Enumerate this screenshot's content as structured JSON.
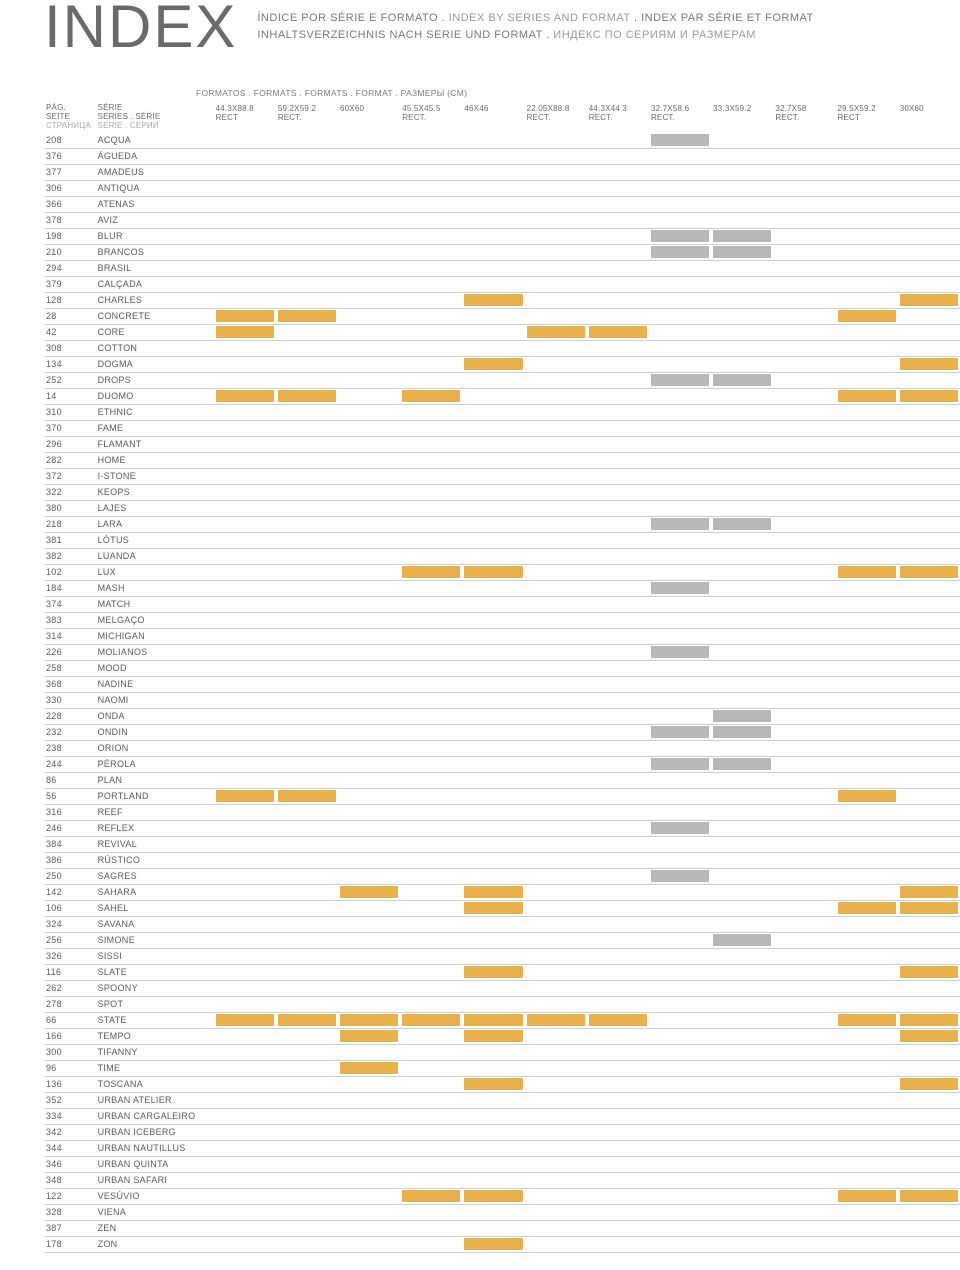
{
  "title": "INDEX",
  "subtitles": {
    "line1a": "ÍNDICE POR SÉRIE E FORMATO . ",
    "line1b": "INDEX BY SERIES AND FORMAT",
    "line1c": " . INDEX PAR SÉRIE ET FORMAT",
    "line2a": "INHALTSVERZEICHNIS NACH SERIE UND FORMAT . ",
    "line2b": "ИНДЕКС ПО СЕРИЯМ И РАЗМЕРАМ"
  },
  "formats_label": "FORMATOS . FORMATS . FORMATS . FORMAT . РАЗМЕРЫ (CM)",
  "page_header": [
    "PÁG.",
    "SEITE",
    "СТРАНИЦА"
  ],
  "series_header": [
    "SÉRIE",
    "SERIES . SÉRIE",
    "SERIE . СЕРИИ"
  ],
  "format_columns": [
    {
      "l1": "44.3X88.8",
      "l2": "RECT"
    },
    {
      "l1": "59.2X59.2",
      "l2": "RECT."
    },
    {
      "l1": "60X60",
      "l2": ""
    },
    {
      "l1": "45.5X45.5",
      "l2": "RECT."
    },
    {
      "l1": "46X46",
      "l2": ""
    },
    {
      "l1": "22.05X88.8",
      "l2": "RECT."
    },
    {
      "l1": "44.3X44.3",
      "l2": "RECT."
    },
    {
      "l1": "32.7X58.6",
      "l2": "RECT."
    },
    {
      "l1": "33.3X59.2",
      "l2": ""
    },
    {
      "l1": "32.7X58",
      "l2": "RECT."
    },
    {
      "l1": "29.5X59.2",
      "l2": "RECT"
    },
    {
      "l1": "30X60",
      "l2": ""
    }
  ],
  "colors": {
    "yellow": "#e9b14b",
    "gray": "#b7b7b7",
    "none": ""
  },
  "rows": [
    {
      "p": "208",
      "s": "ACQUA",
      "f": [
        "",
        "",
        "",
        "",
        "",
        "",
        "",
        "gray",
        "",
        "",
        "",
        ""
      ]
    },
    {
      "p": "376",
      "s": "ÁGUEDA",
      "f": [
        "",
        "",
        "",
        "",
        "",
        "",
        "",
        "",
        "",
        "",
        "",
        ""
      ]
    },
    {
      "p": "377",
      "s": "AMADEUS",
      "f": [
        "",
        "",
        "",
        "",
        "",
        "",
        "",
        "",
        "",
        "",
        "",
        ""
      ]
    },
    {
      "p": "306",
      "s": "ANTIQUA",
      "f": [
        "",
        "",
        "",
        "",
        "",
        "",
        "",
        "",
        "",
        "",
        "",
        ""
      ]
    },
    {
      "p": "366",
      "s": "ATENAS",
      "f": [
        "",
        "",
        "",
        "",
        "",
        "",
        "",
        "",
        "",
        "",
        "",
        ""
      ]
    },
    {
      "p": "378",
      "s": "AVIZ",
      "f": [
        "",
        "",
        "",
        "",
        "",
        "",
        "",
        "",
        "",
        "",
        "",
        ""
      ]
    },
    {
      "p": "198",
      "s": "BLUR",
      "f": [
        "",
        "",
        "",
        "",
        "",
        "",
        "",
        "gray",
        "gray",
        "",
        "",
        ""
      ]
    },
    {
      "p": "210",
      "s": "BRANCOS",
      "f": [
        "",
        "",
        "",
        "",
        "",
        "",
        "",
        "gray",
        "gray",
        "",
        "",
        ""
      ]
    },
    {
      "p": "294",
      "s": "BRASIL",
      "f": [
        "",
        "",
        "",
        "",
        "",
        "",
        "",
        "",
        "",
        "",
        "",
        ""
      ]
    },
    {
      "p": "379",
      "s": "CALÇADA",
      "f": [
        "",
        "",
        "",
        "",
        "",
        "",
        "",
        "",
        "",
        "",
        "",
        ""
      ]
    },
    {
      "p": "128",
      "s": "CHARLES",
      "f": [
        "",
        "",
        "",
        "",
        "yellow",
        "",
        "",
        "",
        "",
        "",
        "",
        "yellow"
      ]
    },
    {
      "p": "28",
      "s": "CONCRETE",
      "f": [
        "yellow",
        "yellow",
        "",
        "",
        "",
        "",
        "",
        "",
        "",
        "",
        "yellow",
        ""
      ]
    },
    {
      "p": "42",
      "s": "CORE",
      "f": [
        "yellow",
        "",
        "",
        "",
        "",
        "yellow",
        "yellow",
        "",
        "",
        "",
        "",
        ""
      ]
    },
    {
      "p": "308",
      "s": "COTTON",
      "f": [
        "",
        "",
        "",
        "",
        "",
        "",
        "",
        "",
        "",
        "",
        "",
        ""
      ]
    },
    {
      "p": "134",
      "s": "DOGMA",
      "f": [
        "",
        "",
        "",
        "",
        "yellow",
        "",
        "",
        "",
        "",
        "",
        "",
        "yellow"
      ]
    },
    {
      "p": "252",
      "s": "DROPS",
      "f": [
        "",
        "",
        "",
        "",
        "",
        "",
        "",
        "gray",
        "gray",
        "",
        "",
        ""
      ]
    },
    {
      "p": "14",
      "s": "DUOMO",
      "f": [
        "yellow",
        "yellow",
        "",
        "yellow",
        "",
        "",
        "",
        "",
        "",
        "",
        "yellow",
        "yellow"
      ]
    },
    {
      "p": "310",
      "s": "ETHNIC",
      "f": [
        "",
        "",
        "",
        "",
        "",
        "",
        "",
        "",
        "",
        "",
        "",
        ""
      ]
    },
    {
      "p": "370",
      "s": "FAME",
      "f": [
        "",
        "",
        "",
        "",
        "",
        "",
        "",
        "",
        "",
        "",
        "",
        ""
      ]
    },
    {
      "p": "296",
      "s": "FLAMANT",
      "f": [
        "",
        "",
        "",
        "",
        "",
        "",
        "",
        "",
        "",
        "",
        "",
        ""
      ]
    },
    {
      "p": "282",
      "s": "HOME",
      "f": [
        "",
        "",
        "",
        "",
        "",
        "",
        "",
        "",
        "",
        "",
        "",
        ""
      ]
    },
    {
      "p": "372",
      "s": "I-STONE",
      "f": [
        "",
        "",
        "",
        "",
        "",
        "",
        "",
        "",
        "",
        "",
        "",
        ""
      ]
    },
    {
      "p": "322",
      "s": "KEOPS",
      "f": [
        "",
        "",
        "",
        "",
        "",
        "",
        "",
        "",
        "",
        "",
        "",
        ""
      ]
    },
    {
      "p": "380",
      "s": "LAJES",
      "f": [
        "",
        "",
        "",
        "",
        "",
        "",
        "",
        "",
        "",
        "",
        "",
        ""
      ]
    },
    {
      "p": "218",
      "s": "LARA",
      "f": [
        "",
        "",
        "",
        "",
        "",
        "",
        "",
        "gray",
        "gray",
        "",
        "",
        ""
      ]
    },
    {
      "p": "381",
      "s": "LÓTUS",
      "f": [
        "",
        "",
        "",
        "",
        "",
        "",
        "",
        "",
        "",
        "",
        "",
        ""
      ]
    },
    {
      "p": "382",
      "s": "LUANDA",
      "f": [
        "",
        "",
        "",
        "",
        "",
        "",
        "",
        "",
        "",
        "",
        "",
        ""
      ]
    },
    {
      "p": "102",
      "s": "LUX",
      "f": [
        "",
        "",
        "",
        "yellow",
        "yellow",
        "",
        "",
        "",
        "",
        "",
        "yellow",
        "yellow"
      ]
    },
    {
      "p": "184",
      "s": "MASH",
      "f": [
        "",
        "",
        "",
        "",
        "",
        "",
        "",
        "gray",
        "",
        "",
        "",
        ""
      ]
    },
    {
      "p": "374",
      "s": "MATCH",
      "f": [
        "",
        "",
        "",
        "",
        "",
        "",
        "",
        "",
        "",
        "",
        "",
        ""
      ]
    },
    {
      "p": "383",
      "s": "MELGAÇO",
      "f": [
        "",
        "",
        "",
        "",
        "",
        "",
        "",
        "",
        "",
        "",
        "",
        ""
      ]
    },
    {
      "p": "314",
      "s": "MICHIGAN",
      "f": [
        "",
        "",
        "",
        "",
        "",
        "",
        "",
        "",
        "",
        "",
        "",
        ""
      ]
    },
    {
      "p": "226",
      "s": "MOLIANOS",
      "f": [
        "",
        "",
        "",
        "",
        "",
        "",
        "",
        "gray",
        "",
        "",
        "",
        ""
      ]
    },
    {
      "p": "258",
      "s": "MOOD",
      "f": [
        "",
        "",
        "",
        "",
        "",
        "",
        "",
        "",
        "",
        "",
        "",
        ""
      ]
    },
    {
      "p": "368",
      "s": "NADINE",
      "f": [
        "",
        "",
        "",
        "",
        "",
        "",
        "",
        "",
        "",
        "",
        "",
        ""
      ]
    },
    {
      "p": "330",
      "s": "NAOMI",
      "f": [
        "",
        "",
        "",
        "",
        "",
        "",
        "",
        "",
        "",
        "",
        "",
        ""
      ]
    },
    {
      "p": "228",
      "s": "ONDA",
      "f": [
        "",
        "",
        "",
        "",
        "",
        "",
        "",
        "",
        "gray",
        "",
        "",
        ""
      ]
    },
    {
      "p": "232",
      "s": "ONDIN",
      "f": [
        "",
        "",
        "",
        "",
        "",
        "",
        "",
        "gray",
        "gray",
        "",
        "",
        ""
      ]
    },
    {
      "p": "238",
      "s": "ORION",
      "f": [
        "",
        "",
        "",
        "",
        "",
        "",
        "",
        "",
        "",
        "",
        "",
        ""
      ]
    },
    {
      "p": "244",
      "s": "PÉROLA",
      "f": [
        "",
        "",
        "",
        "",
        "",
        "",
        "",
        "gray",
        "gray",
        "",
        "",
        ""
      ]
    },
    {
      "p": "86",
      "s": "PLAN",
      "f": [
        "",
        "",
        "",
        "",
        "",
        "",
        "",
        "",
        "",
        "",
        "",
        ""
      ]
    },
    {
      "p": "56",
      "s": "PORTLAND",
      "f": [
        "yellow",
        "yellow",
        "",
        "",
        "",
        "",
        "",
        "",
        "",
        "",
        "yellow",
        ""
      ]
    },
    {
      "p": "316",
      "s": "REEF",
      "f": [
        "",
        "",
        "",
        "",
        "",
        "",
        "",
        "",
        "",
        "",
        "",
        ""
      ]
    },
    {
      "p": "246",
      "s": "REFLEX",
      "f": [
        "",
        "",
        "",
        "",
        "",
        "",
        "",
        "gray",
        "",
        "",
        "",
        ""
      ]
    },
    {
      "p": "384",
      "s": "REVIVAL",
      "f": [
        "",
        "",
        "",
        "",
        "",
        "",
        "",
        "",
        "",
        "",
        "",
        ""
      ]
    },
    {
      "p": "386",
      "s": "RÚSTICO",
      "f": [
        "",
        "",
        "",
        "",
        "",
        "",
        "",
        "",
        "",
        "",
        "",
        ""
      ]
    },
    {
      "p": "250",
      "s": "SAGRES",
      "f": [
        "",
        "",
        "",
        "",
        "",
        "",
        "",
        "gray",
        "",
        "",
        "",
        ""
      ]
    },
    {
      "p": "142",
      "s": "SAHARA",
      "f": [
        "",
        "",
        "yellow",
        "",
        "yellow",
        "",
        "",
        "",
        "",
        "",
        "",
        "yellow"
      ]
    },
    {
      "p": "106",
      "s": "SAHEL",
      "f": [
        "",
        "",
        "",
        "",
        "yellow",
        "",
        "",
        "",
        "",
        "",
        "yellow",
        "yellow"
      ]
    },
    {
      "p": "324",
      "s": "SAVANA",
      "f": [
        "",
        "",
        "",
        "",
        "",
        "",
        "",
        "",
        "",
        "",
        "",
        ""
      ]
    },
    {
      "p": "256",
      "s": "SIMONE",
      "f": [
        "",
        "",
        "",
        "",
        "",
        "",
        "",
        "",
        "gray",
        "",
        "",
        ""
      ]
    },
    {
      "p": "326",
      "s": "SISSI",
      "f": [
        "",
        "",
        "",
        "",
        "",
        "",
        "",
        "",
        "",
        "",
        "",
        ""
      ]
    },
    {
      "p": "116",
      "s": "SLATE",
      "f": [
        "",
        "",
        "",
        "",
        "yellow",
        "",
        "",
        "",
        "",
        "",
        "",
        "yellow"
      ]
    },
    {
      "p": "262",
      "s": "SPOONY",
      "f": [
        "",
        "",
        "",
        "",
        "",
        "",
        "",
        "",
        "",
        "",
        "",
        ""
      ]
    },
    {
      "p": "278",
      "s": "SPOT",
      "f": [
        "",
        "",
        "",
        "",
        "",
        "",
        "",
        "",
        "",
        "",
        "",
        ""
      ]
    },
    {
      "p": "66",
      "s": "STATE",
      "f": [
        "yellow",
        "yellow",
        "yellow",
        "yellow",
        "yellow",
        "yellow",
        "yellow",
        "",
        "",
        "",
        "yellow",
        "yellow"
      ]
    },
    {
      "p": "166",
      "s": "TEMPO",
      "f": [
        "",
        "",
        "yellow",
        "",
        "yellow",
        "",
        "",
        "",
        "",
        "",
        "",
        "yellow"
      ]
    },
    {
      "p": "300",
      "s": "TIFANNY",
      "f": [
        "",
        "",
        "",
        "",
        "",
        "",
        "",
        "",
        "",
        "",
        "",
        ""
      ]
    },
    {
      "p": "96",
      "s": "TIME",
      "f": [
        "",
        "",
        "yellow",
        "",
        "",
        "",
        "",
        "",
        "",
        "",
        "",
        ""
      ]
    },
    {
      "p": "136",
      "s": "TOSCANA",
      "f": [
        "",
        "",
        "",
        "",
        "yellow",
        "",
        "",
        "",
        "",
        "",
        "",
        "yellow"
      ]
    },
    {
      "p": "352",
      "s": "URBAN ATELIER",
      "f": [
        "",
        "",
        "",
        "",
        "",
        "",
        "",
        "",
        "",
        "",
        "",
        ""
      ]
    },
    {
      "p": "334",
      "s": "URBAN CARGALEIRO",
      "f": [
        "",
        "",
        "",
        "",
        "",
        "",
        "",
        "",
        "",
        "",
        "",
        ""
      ]
    },
    {
      "p": "342",
      "s": "URBAN ICEBERG",
      "f": [
        "",
        "",
        "",
        "",
        "",
        "",
        "",
        "",
        "",
        "",
        "",
        ""
      ]
    },
    {
      "p": "344",
      "s": "URBAN NAUTILLUS",
      "f": [
        "",
        "",
        "",
        "",
        "",
        "",
        "",
        "",
        "",
        "",
        "",
        ""
      ]
    },
    {
      "p": "346",
      "s": "URBAN QUINTA",
      "f": [
        "",
        "",
        "",
        "",
        "",
        "",
        "",
        "",
        "",
        "",
        "",
        ""
      ]
    },
    {
      "p": "348",
      "s": "URBAN SAFARI",
      "f": [
        "",
        "",
        "",
        "",
        "",
        "",
        "",
        "",
        "",
        "",
        "",
        ""
      ]
    },
    {
      "p": "122",
      "s": "VESÚVIO",
      "f": [
        "",
        "",
        "",
        "yellow",
        "yellow",
        "",
        "",
        "",
        "",
        "",
        "yellow",
        "yellow"
      ]
    },
    {
      "p": "328",
      "s": "VIENA",
      "f": [
        "",
        "",
        "",
        "",
        "",
        "",
        "",
        "",
        "",
        "",
        "",
        ""
      ]
    },
    {
      "p": "387",
      "s": "ZEN",
      "f": [
        "",
        "",
        "",
        "",
        "",
        "",
        "",
        "",
        "",
        "",
        "",
        ""
      ]
    },
    {
      "p": "178",
      "s": "ZON",
      "f": [
        "",
        "",
        "",
        "",
        "yellow",
        "",
        "",
        "",
        "",
        "",
        "",
        ""
      ]
    }
  ]
}
